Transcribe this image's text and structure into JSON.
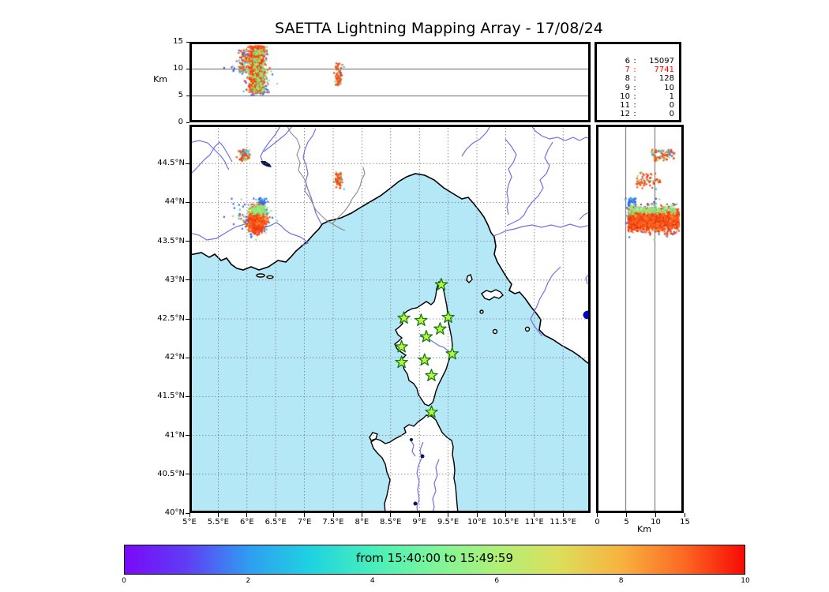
{
  "title": "SAETTA Lightning Mapping Array - 17/08/24",
  "top_panel": {
    "ylabel": "Km",
    "yticks": [
      "0",
      "5",
      "10",
      "15"
    ],
    "ytick_alts": [
      0,
      5,
      10,
      15
    ],
    "grid_alts": [
      5,
      10
    ]
  },
  "right_panel": {
    "xlabel": "Km",
    "xticks": [
      "0",
      "5",
      "10",
      "15"
    ],
    "xtick_alts": [
      0,
      5,
      10,
      15
    ],
    "grid_alts": [
      5,
      10
    ]
  },
  "counts_panel": {
    "rows": [
      {
        "level": "6",
        "value": "15097",
        "highlight": false
      },
      {
        "level": "7",
        "value": "7741",
        "highlight": true
      },
      {
        "level": "8",
        "value": "128",
        "highlight": false
      },
      {
        "level": "9",
        "value": "10",
        "highlight": false
      },
      {
        "level": "10",
        "value": "1",
        "highlight": false
      },
      {
        "level": "11",
        "value": "0",
        "highlight": false
      },
      {
        "level": "12",
        "value": "0",
        "highlight": false
      }
    ],
    "highlight_color": "#ff0000"
  },
  "map_panel": {
    "lon_labels": [
      "5°E",
      "5.5°E",
      "6°E",
      "6.5°E",
      "7°E",
      "7.5°E",
      "8°E",
      "8.5°E",
      "9°E",
      "9.5°E",
      "10°E",
      "10.5°E",
      "11°E",
      "11.5°E"
    ],
    "lat_labels": [
      "40°N",
      "40.5°N",
      "41°N",
      "41.5°N",
      "42°N",
      "42.5°N",
      "43°N",
      "43.5°N",
      "44°N",
      "44.5°N"
    ]
  },
  "map_colors": {
    "sea": "#b5e8f7",
    "land": "#ffffff",
    "coast": "#000000",
    "rivers": "#7070e6",
    "borders": "#8a8a8a",
    "lakes": "#0a1a50",
    "lake_bolsena": "#0000cd",
    "grid": "#7a7a7a",
    "station_fill": "#bdf53d",
    "station_stroke": "#147a14"
  },
  "colorbar": {
    "label": "from 15:40:00 to 15:49:59",
    "ticks": [
      "0",
      "2",
      "4",
      "6",
      "8",
      "10"
    ],
    "gradient": [
      "#7a09f7",
      "#5f3ef5",
      "#2f9df2",
      "#1fd3e0",
      "#48eebb",
      "#7df59b",
      "#aff077",
      "#ddde5c",
      "#f7b33f",
      "#fc6a24",
      "#f70a04"
    ]
  },
  "chart_data": {
    "type": "scatter",
    "title": "SAETTA Lightning Mapping Array - 17/08/24",
    "date": "17/08/24",
    "time_window": {
      "from": "15:40:00",
      "to": "15:49:59"
    },
    "colorbar_minutes_range": [
      0,
      10
    ],
    "sources_by_station_count": {
      "6": 15097,
      "7": 7741,
      "8": 128,
      "9": 10,
      "10": 1,
      "11": 0,
      "12": 0
    },
    "map_extent": {
      "lon": [
        5.0,
        11.98
      ],
      "lat": [
        40.0,
        45.0
      ],
      "grid_step_deg": 0.5
    },
    "altitude_axis_km": {
      "range": [
        0,
        15
      ],
      "grid": [
        5,
        10
      ]
    },
    "stations_lonlat": [
      [
        9.38,
        42.94
      ],
      [
        8.73,
        42.51
      ],
      [
        9.03,
        42.48
      ],
      [
        9.5,
        42.52
      ],
      [
        9.36,
        42.37
      ],
      [
        9.12,
        42.27
      ],
      [
        8.69,
        42.14
      ],
      [
        9.57,
        42.05
      ],
      [
        9.09,
        41.97
      ],
      [
        8.69,
        41.94
      ],
      [
        9.21,
        41.77
      ],
      [
        9.21,
        41.3
      ]
    ],
    "palettes": {
      "hot": [
        [
          "#ee3410",
          0.3
        ],
        [
          "#f4511a",
          0.4
        ],
        [
          "#fb6d1c",
          0.2
        ],
        [
          "#fd8c33",
          0.1
        ]
      ],
      "green": [
        [
          "#8ae984",
          0.55
        ],
        [
          "#abef6c",
          0.3
        ],
        [
          "#5fdc90",
          0.15
        ]
      ],
      "cool": [
        [
          "#38c6ea",
          0.33
        ],
        [
          "#2e6bf0",
          0.3
        ],
        [
          "#8a3ce8",
          0.14
        ],
        [
          "#8ae984",
          0.23
        ]
      ],
      "blue": [
        [
          "#2e6bf0",
          0.85
        ],
        [
          "#38c6ea",
          0.15
        ]
      ],
      "hotmix": [
        [
          "#f4511a",
          0.55
        ],
        [
          "#ee3410",
          0.12
        ],
        [
          "#38c6ea",
          0.13
        ],
        [
          "#8ae984",
          0.13
        ],
        [
          "#2e6bf0",
          0.07
        ]
      ],
      "hotmix2": [
        [
          "#f4511a",
          0.6
        ],
        [
          "#ee3410",
          0.15
        ],
        [
          "#8ae984",
          0.12
        ],
        [
          "#38c6ea",
          0.13
        ]
      ],
      "mixed": [
        [
          "#2e6bf0",
          0.2
        ],
        [
          "#8a3ce8",
          0.15
        ],
        [
          "#38c6ea",
          0.2
        ],
        [
          "#f4511a",
          0.25
        ],
        [
          "#8ae984",
          0.2
        ]
      ]
    },
    "clusters": [
      {
        "id": "main-storm-fringe",
        "lon": 6.17,
        "lon_sd": 0.11,
        "lat": 43.78,
        "lat_sd": 0.11,
        "alt": [
          5.0,
          14.4
        ],
        "n": 130,
        "palette": "cool"
      },
      {
        "id": "west-outliers",
        "lon": 5.88,
        "lon_sd": 0.1,
        "lat": 43.83,
        "lat_sd": 0.09,
        "alt": [
          9.0,
          11.6
        ],
        "n": 22,
        "palette": "mixed"
      },
      {
        "id": "mid-blue-cell",
        "lon": 6.27,
        "lon_sd": 0.04,
        "lat": 44.0,
        "lat_sd": 0.03,
        "alt": [
          5.2,
          6.8
        ],
        "n": 42,
        "palette": "blue"
      },
      {
        "id": "north-cell",
        "lon": 5.95,
        "lon_sd": 0.045,
        "lat": 44.62,
        "lat_sd": 0.038,
        "alt": [
          9.5,
          13.5
        ],
        "n": 85,
        "palette": "hotmix"
      },
      {
        "id": "east-cell",
        "lon": 7.6,
        "lon_sd": 0.032,
        "lat": 44.28,
        "lat_sd": 0.05,
        "alt": [
          6.8,
          11.0
        ],
        "n": 70,
        "palette": "hotmix2"
      },
      {
        "id": "main-storm-core",
        "lon": 6.17,
        "lon_sd": 0.06,
        "lat": 43.77,
        "lat_sd": 0.065,
        "alt": [
          5.5,
          14.2
        ],
        "n": 1600,
        "palette": "hot"
      },
      {
        "id": "main-storm-green",
        "lon": 6.2,
        "lon_sd": 0.075,
        "lat": 43.9,
        "lat_sd": 0.028,
        "alt": [
          5.5,
          13.8
        ],
        "n": 140,
        "palette": "green"
      }
    ]
  }
}
